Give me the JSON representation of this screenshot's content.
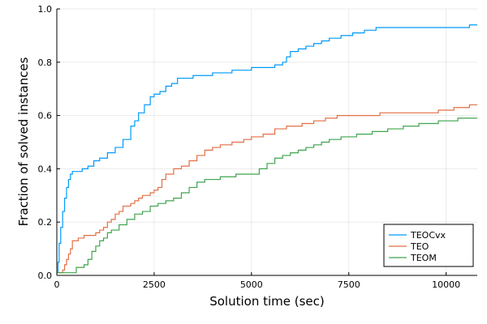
{
  "chart_data": {
    "type": "line",
    "xlabel": "Solution time (sec)",
    "ylabel": "Fraction of solved instances",
    "xlim": [
      0,
      10800
    ],
    "ylim": [
      0,
      1.0
    ],
    "x_ticks": [
      0,
      2500,
      5000,
      7500,
      10000
    ],
    "x_tick_labels": [
      "0",
      "2500",
      "5000",
      "7500",
      "10000"
    ],
    "y_ticks": [
      0,
      0.2,
      0.4,
      0.6,
      0.8,
      1.0
    ],
    "y_tick_labels": [
      "0.0",
      "0.2",
      "0.4",
      "0.6",
      "0.8",
      "1.0"
    ],
    "grid": true,
    "legend_position": "bottom-right",
    "series": [
      {
        "name": "TEOCvx",
        "color": "#009AFA",
        "x": [
          0,
          30,
          60,
          100,
          150,
          200,
          250,
          300,
          350,
          400,
          500,
          650,
          800,
          950,
          1100,
          1300,
          1500,
          1700,
          1900,
          2000,
          2100,
          2250,
          2400,
          2500,
          2650,
          2800,
          2950,
          3100,
          3500,
          4000,
          4500,
          5000,
          5400,
          5600,
          5800,
          5900,
          6000,
          6200,
          6400,
          6600,
          6800,
          7000,
          7300,
          7600,
          7900,
          8200,
          9000,
          10000,
          10600,
          10800
        ],
        "y": [
          0.01,
          0.05,
          0.12,
          0.18,
          0.24,
          0.29,
          0.33,
          0.36,
          0.38,
          0.39,
          0.39,
          0.4,
          0.41,
          0.43,
          0.44,
          0.46,
          0.48,
          0.51,
          0.56,
          0.58,
          0.61,
          0.64,
          0.67,
          0.68,
          0.69,
          0.71,
          0.72,
          0.74,
          0.75,
          0.76,
          0.77,
          0.78,
          0.78,
          0.79,
          0.8,
          0.82,
          0.84,
          0.85,
          0.86,
          0.87,
          0.88,
          0.89,
          0.9,
          0.91,
          0.92,
          0.93,
          0.93,
          0.93,
          0.94,
          0.94
        ]
      },
      {
        "name": "TEO",
        "color": "#E26F46",
        "x": [
          0,
          100,
          150,
          200,
          250,
          300,
          350,
          400,
          550,
          700,
          900,
          1000,
          1100,
          1200,
          1300,
          1400,
          1500,
          1600,
          1700,
          1800,
          1900,
          2000,
          2100,
          2200,
          2300,
          2400,
          2500,
          2600,
          2700,
          2800,
          3000,
          3200,
          3400,
          3600,
          3800,
          4000,
          4200,
          4500,
          4800,
          5000,
          5300,
          5600,
          5900,
          6300,
          6600,
          6900,
          7200,
          7500,
          7900,
          8300,
          8800,
          9300,
          9800,
          10200,
          10600,
          10800
        ],
        "y": [
          0.01,
          0.01,
          0.02,
          0.04,
          0.06,
          0.08,
          0.1,
          0.13,
          0.14,
          0.15,
          0.15,
          0.16,
          0.17,
          0.18,
          0.2,
          0.21,
          0.23,
          0.24,
          0.26,
          0.26,
          0.27,
          0.28,
          0.29,
          0.3,
          0.3,
          0.31,
          0.32,
          0.33,
          0.36,
          0.38,
          0.4,
          0.41,
          0.43,
          0.45,
          0.47,
          0.48,
          0.49,
          0.5,
          0.51,
          0.52,
          0.53,
          0.55,
          0.56,
          0.57,
          0.58,
          0.59,
          0.6,
          0.6,
          0.6,
          0.61,
          0.61,
          0.61,
          0.62,
          0.63,
          0.64,
          0.64
        ]
      },
      {
        "name": "TEOM",
        "color": "#3EA44E",
        "x": [
          0,
          100,
          300,
          500,
          700,
          800,
          900,
          1000,
          1100,
          1200,
          1300,
          1400,
          1600,
          1800,
          2000,
          2200,
          2400,
          2600,
          2800,
          3000,
          3200,
          3400,
          3600,
          3800,
          4200,
          4600,
          5000,
          5200,
          5400,
          5600,
          5800,
          6000,
          6200,
          6400,
          6600,
          6800,
          7000,
          7300,
          7700,
          8100,
          8500,
          8900,
          9300,
          9800,
          10300,
          10800
        ],
        "y": [
          0.01,
          0.01,
          0.01,
          0.03,
          0.04,
          0.06,
          0.09,
          0.11,
          0.13,
          0.14,
          0.16,
          0.17,
          0.19,
          0.21,
          0.23,
          0.24,
          0.26,
          0.27,
          0.28,
          0.29,
          0.31,
          0.33,
          0.35,
          0.36,
          0.37,
          0.38,
          0.38,
          0.4,
          0.42,
          0.44,
          0.45,
          0.46,
          0.47,
          0.48,
          0.49,
          0.5,
          0.51,
          0.52,
          0.53,
          0.54,
          0.55,
          0.56,
          0.57,
          0.58,
          0.59,
          0.59
        ]
      }
    ]
  }
}
